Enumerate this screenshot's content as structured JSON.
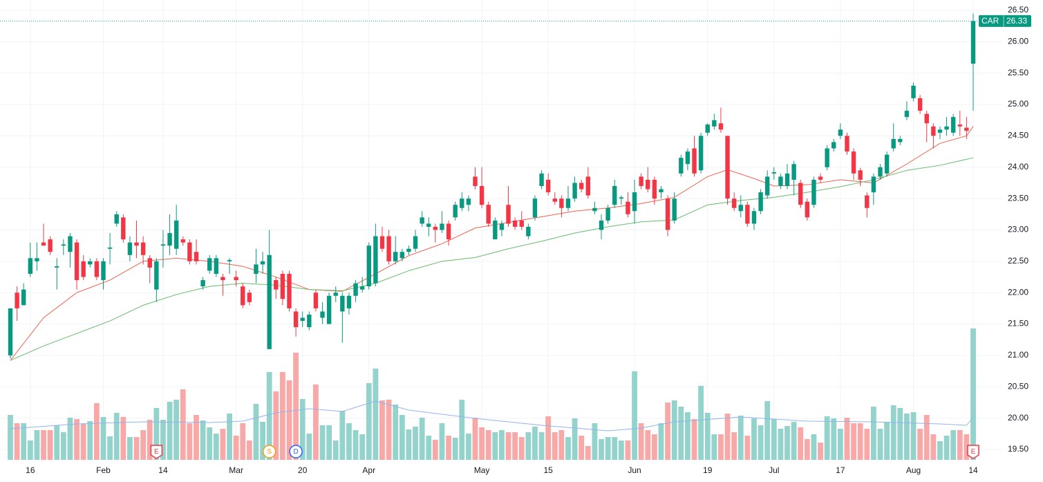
{
  "chart_data": {
    "type": "candlestick",
    "symbol": "CAR",
    "up_color": "#089981",
    "down_color": "#f23645",
    "volume_up_color": "#93d3cc",
    "volume_down_color": "#f7a8a7",
    "grid": true,
    "ylim": [
      19.5,
      26.5
    ],
    "yticks": [
      {
        "value": 19.5,
        "label": "19.50"
      },
      {
        "value": 20,
        "label": "20.00"
      },
      {
        "value": 20.5,
        "label": "20.50"
      },
      {
        "value": 21,
        "label": "21.00"
      },
      {
        "value": 21.5,
        "label": "21.50"
      },
      {
        "value": 22,
        "label": "22.00"
      },
      {
        "value": 22.5,
        "label": "22.50"
      },
      {
        "value": 23,
        "label": "23.00"
      },
      {
        "value": 23.5,
        "label": "23.50"
      },
      {
        "value": 24,
        "label": "24.00"
      },
      {
        "value": 24.5,
        "label": "24.50"
      },
      {
        "value": 25,
        "label": "25.00"
      },
      {
        "value": 25.5,
        "label": "25.50"
      },
      {
        "value": 26,
        "label": "26.00"
      },
      {
        "value": 26.5,
        "label": "26.50"
      }
    ],
    "vlim": [
      0,
      200
    ],
    "categories": [
      null,
      null,
      null,
      "16",
      null,
      null,
      null,
      null,
      null,
      null,
      null,
      null,
      null,
      null,
      "Feb",
      null,
      null,
      null,
      null,
      null,
      null,
      null,
      null,
      "14",
      null,
      null,
      null,
      null,
      null,
      null,
      null,
      null,
      null,
      null,
      "Mar",
      null,
      null,
      null,
      null,
      null,
      null,
      null,
      null,
      null,
      "20",
      null,
      null,
      null,
      null,
      null,
      null,
      null,
      null,
      null,
      "Apr",
      null,
      null,
      null,
      null,
      null,
      null,
      null,
      null,
      null,
      null,
      null,
      null,
      null,
      null,
      null,
      null,
      "May",
      null,
      null,
      null,
      null,
      null,
      null,
      null,
      null,
      null,
      "15",
      null,
      null,
      null,
      null,
      null,
      null,
      null,
      null,
      null,
      null,
      null,
      null,
      "Jun",
      null,
      null,
      null,
      null,
      null,
      null,
      null,
      null,
      null,
      null,
      "19",
      null,
      null,
      null,
      null,
      null,
      null,
      null,
      null,
      null,
      "Jul",
      null,
      null,
      null,
      null,
      null,
      null,
      null,
      null,
      null,
      "17",
      null,
      null,
      null,
      null,
      null,
      null,
      null,
      null,
      null,
      null,
      "Aug",
      null,
      null,
      null,
      null,
      null,
      null,
      null,
      null,
      "14"
    ],
    "open": [
      21.0,
      22.0,
      21.8,
      22.3,
      22.5,
      22.8,
      22.85,
      22.4,
      22.75,
      22.65,
      22.8,
      22.5,
      22.45,
      22.5,
      22.2,
      22.7,
      23.1,
      23.2,
      22.6,
      22.8,
      22.8,
      22.55,
      22.05,
      22.75,
      22.75,
      22.7,
      22.85,
      22.8,
      22.65,
      22.1,
      22.35,
      22.3,
      22.25,
      22.5,
      22.25,
      22.1,
      22.0,
      22.3,
      22.45,
      21.1,
      22.2,
      22.3,
      22.3,
      21.7,
      21.55,
      21.45,
      22.0,
      21.6,
      21.5,
      21.95,
      21.7,
      21.75,
      21.95,
      22.05,
      22.1,
      22.15,
      22.9,
      22.9,
      22.5,
      22.55,
      22.65,
      22.7,
      23.1,
      23.05,
      23.05,
      23.0,
      23.1,
      23.2,
      23.35,
      23.4,
      23.85,
      23.7,
      23.4,
      22.85,
      23.0,
      23.4,
      23.15,
      23.15,
      22.9,
      23.2,
      23.7,
      23.8,
      23.5,
      23.5,
      23.35,
      23.5,
      23.75,
      23.85,
      23.3,
      23.0,
      23.15,
      23.4,
      23.5,
      23.45,
      23.3,
      23.85,
      23.8,
      23.8,
      23.6,
      23.5,
      23.15,
      23.9,
      24.05,
      24.3,
      23.95,
      24.55,
      24.65,
      24.7,
      24.5,
      23.5,
      23.3,
      23.4,
      23.1,
      23.3,
      23.55,
      23.9,
      23.7,
      23.7,
      23.8,
      23.75,
      23.45,
      23.4,
      23.85,
      24.0,
      24.3,
      24.5,
      24.5,
      24.25,
      23.95,
      23.55,
      23.6,
      23.85,
      23.9,
      24.3,
      24.4,
      24.8,
      25.1,
      25.1,
      24.85,
      24.65,
      24.55,
      24.6,
      24.55,
      24.68,
      24.63,
      25.65
    ],
    "high": [
      21.75,
      22.1,
      22.15,
      22.8,
      22.8,
      23.1,
      22.9,
      22.55,
      22.85,
      22.95,
      22.85,
      22.6,
      22.55,
      22.55,
      22.55,
      22.95,
      23.3,
      23.25,
      22.9,
      23.15,
      22.9,
      22.6,
      22.55,
      23.0,
      23.25,
      23.4,
      22.9,
      22.85,
      22.85,
      22.25,
      22.6,
      22.6,
      22.3,
      22.55,
      22.35,
      22.15,
      22.05,
      22.7,
      22.65,
      23.0,
      22.25,
      22.35,
      22.35,
      21.75,
      21.7,
      21.7,
      22.05,
      21.85,
      22.0,
      22.1,
      22.0,
      22.0,
      22.2,
      22.25,
      22.8,
      23.1,
      23.05,
      23.0,
      22.9,
      22.7,
      22.75,
      23.0,
      23.3,
      23.2,
      23.1,
      23.3,
      23.15,
      23.45,
      23.6,
      23.55,
      24.0,
      24.0,
      23.45,
      23.2,
      23.15,
      23.7,
      23.2,
      23.3,
      23.1,
      23.55,
      23.95,
      23.9,
      23.6,
      23.55,
      23.7,
      23.85,
      23.8,
      24.0,
      23.45,
      23.25,
      23.4,
      23.8,
      23.55,
      23.6,
      23.8,
      23.9,
      24.0,
      23.85,
      23.7,
      23.55,
      23.6,
      24.2,
      24.3,
      24.5,
      24.55,
      24.7,
      24.85,
      24.95,
      24.5,
      23.6,
      23.55,
      23.45,
      23.35,
      23.65,
      23.95,
      24.0,
      23.9,
      24.05,
      24.1,
      23.8,
      23.5,
      23.85,
      23.9,
      24.35,
      24.45,
      24.7,
      24.55,
      24.3,
      23.99,
      23.6,
      23.9,
      24.05,
      24.25,
      24.7,
      24.5,
      25.05,
      25.35,
      25.15,
      24.9,
      24.7,
      24.65,
      24.8,
      24.85,
      24.9,
      24.8,
      26.45
    ],
    "low": [
      20.95,
      21.55,
      21.8,
      22.25,
      22.35,
      22.75,
      22.6,
      22.05,
      22.6,
      22.4,
      22.05,
      22.2,
      22.4,
      22.2,
      22.05,
      22.45,
      23.05,
      22.8,
      22.5,
      22.55,
      22.45,
      22.15,
      21.85,
      22.4,
      22.6,
      22.6,
      22.75,
      22.45,
      22.45,
      22.05,
      22.3,
      22.25,
      21.95,
      22.3,
      22.1,
      21.75,
      21.8,
      22.15,
      22.3,
      21.1,
      21.9,
      21.8,
      21.7,
      21.3,
      21.45,
      21.4,
      21.7,
      21.5,
      21.5,
      21.85,
      21.2,
      21.65,
      21.85,
      22.0,
      22.05,
      22.1,
      22.65,
      22.45,
      22.45,
      22.5,
      22.6,
      22.65,
      23.05,
      22.9,
      22.8,
      22.95,
      22.75,
      23.15,
      23.3,
      23.3,
      23.65,
      23.35,
      23.05,
      22.85,
      22.9,
      23.05,
      23.0,
      23.0,
      22.85,
      23.15,
      23.65,
      23.55,
      23.4,
      23.2,
      23.3,
      23.45,
      23.6,
      23.5,
      23.25,
      22.85,
      23.1,
      23.35,
      23.4,
      23.2,
      23.1,
      23.65,
      23.6,
      23.4,
      23.5,
      22.9,
      23.1,
      23.85,
      23.95,
      23.85,
      23.9,
      24.5,
      24.6,
      24.55,
      23.4,
      23.3,
      23.2,
      23.05,
      23.0,
      23.25,
      23.5,
      23.8,
      23.65,
      23.65,
      23.55,
      23.35,
      23.15,
      23.35,
      23.75,
      23.95,
      24.25,
      24.45,
      24.2,
      23.8,
      23.7,
      23.2,
      23.4,
      23.8,
      23.85,
      24.25,
      24.35,
      24.75,
      25.05,
      24.85,
      24.4,
      24.3,
      24.45,
      24.5,
      24.5,
      24.5,
      24.45,
      24.9
    ],
    "close": [
      21.75,
      21.75,
      22.05,
      22.55,
      22.55,
      22.75,
      22.65,
      22.42,
      22.77,
      22.9,
      22.2,
      22.25,
      22.5,
      22.25,
      22.5,
      22.72,
      23.25,
      22.85,
      22.8,
      22.75,
      22.6,
      22.4,
      22.5,
      22.77,
      22.95,
      23.15,
      22.8,
      22.5,
      22.5,
      22.2,
      22.55,
      22.55,
      22.2,
      22.52,
      22.2,
      21.8,
      21.85,
      22.45,
      22.5,
      22.6,
      22.05,
      21.9,
      21.75,
      21.45,
      21.6,
      21.65,
      21.75,
      21.7,
      21.95,
      22.0,
      21.95,
      21.95,
      22.15,
      22.1,
      22.75,
      22.9,
      22.7,
      22.5,
      22.65,
      22.65,
      22.7,
      22.9,
      23.2,
      23.1,
      23.0,
      23.1,
      22.85,
      23.4,
      23.5,
      23.5,
      23.7,
      23.4,
      23.1,
      23.15,
      23.1,
      23.1,
      23.05,
      23.05,
      23.05,
      23.5,
      23.9,
      23.6,
      23.45,
      23.35,
      23.5,
      23.75,
      23.65,
      23.55,
      23.35,
      23.15,
      23.35,
      23.7,
      23.52,
      23.25,
      23.6,
      23.7,
      23.65,
      23.5,
      23.65,
      23.0,
      23.5,
      24.15,
      24.25,
      23.9,
      24.5,
      24.68,
      24.75,
      24.6,
      23.5,
      23.35,
      23.4,
      23.1,
      23.3,
      23.6,
      23.85,
      23.92,
      23.85,
      23.9,
      24.05,
      23.4,
      23.2,
      23.8,
      23.8,
      24.3,
      24.4,
      24.6,
      24.25,
      23.9,
      23.8,
      23.35,
      23.85,
      24.0,
      24.2,
      24.45,
      24.45,
      24.9,
      25.3,
      24.9,
      24.7,
      24.5,
      24.6,
      24.65,
      24.8,
      24.65,
      24.58,
      26.33
    ],
    "volume": [
      65,
      53,
      53,
      28,
      43,
      43,
      43,
      50,
      40,
      61,
      59,
      52,
      56,
      82,
      62,
      34,
      68,
      62,
      33,
      33,
      43,
      58,
      75,
      58,
      84,
      87,
      102,
      53,
      65,
      57,
      47,
      38,
      45,
      67,
      35,
      53,
      28,
      81,
      55,
      127,
      99,
      127,
      115,
      155,
      88,
      38,
      109,
      50,
      50,
      28,
      71,
      53,
      43,
      37,
      111,
      132,
      86,
      87,
      80,
      65,
      44,
      48,
      61,
      35,
      29,
      53,
      35,
      32,
      87,
      38,
      61,
      47,
      43,
      40,
      43,
      40,
      40,
      33,
      40,
      48,
      40,
      63,
      40,
      43,
      33,
      60,
      35,
      20,
      53,
      30,
      33,
      33,
      28,
      28,
      128,
      53,
      43,
      37,
      53,
      83,
      86,
      77,
      69,
      59,
      107,
      68,
      37,
      37,
      67,
      40,
      64,
      35,
      60,
      50,
      85,
      59,
      45,
      49,
      55,
      47,
      30,
      37,
      25,
      63,
      60,
      45,
      61,
      53,
      53,
      45,
      77,
      45,
      55,
      79,
      75,
      67,
      69,
      45,
      65,
      37,
      27,
      35,
      43,
      43,
      37,
      190
    ],
    "moving_averages": [
      {
        "color": "#f0614f",
        "x": [
          0,
          5,
          10,
          15,
          20,
          25,
          30,
          35,
          40,
          45,
          50,
          55,
          60,
          65,
          70,
          75,
          80,
          85,
          90,
          95,
          100,
          105,
          108,
          112,
          115,
          120,
          125,
          130,
          135,
          140,
          144,
          145
        ],
        "values": [
          20.92,
          21.6,
          22.0,
          22.2,
          22.5,
          22.55,
          22.5,
          22.42,
          22.25,
          22.05,
          22.02,
          22.3,
          22.59,
          22.78,
          23.03,
          23.12,
          23.21,
          23.3,
          23.35,
          23.42,
          23.52,
          23.85,
          23.96,
          23.82,
          23.7,
          23.72,
          23.8,
          23.75,
          24.05,
          24.38,
          24.5,
          24.65
        ]
      },
      {
        "color": "#66bb6a",
        "x": [
          0,
          5,
          10,
          15,
          20,
          25,
          30,
          35,
          40,
          45,
          50,
          55,
          60,
          65,
          70,
          75,
          80,
          85,
          90,
          95,
          100,
          105,
          110,
          115,
          120,
          125,
          130,
          135,
          140,
          145
        ],
        "values": [
          20.92,
          21.15,
          21.35,
          21.55,
          21.8,
          21.97,
          22.1,
          22.15,
          22.12,
          22.05,
          22.03,
          22.15,
          22.35,
          22.5,
          22.56,
          22.7,
          22.82,
          22.95,
          23.05,
          23.13,
          23.16,
          23.4,
          23.47,
          23.52,
          23.6,
          23.69,
          23.8,
          23.95,
          24.03,
          24.15
        ]
      }
    ],
    "volume_average": {
      "color": "#91b4ec",
      "x": [
        0,
        10,
        20,
        30,
        35,
        40,
        45,
        50,
        55,
        60,
        70,
        80,
        90,
        95,
        100,
        110,
        120,
        130,
        140,
        144,
        145
      ],
      "values": [
        45,
        52,
        55,
        54,
        56,
        68,
        74,
        70,
        85,
        72,
        60,
        50,
        42,
        46,
        55,
        62,
        56,
        55,
        52,
        50,
        62
      ]
    },
    "events": [
      {
        "label": "E",
        "x": 22,
        "color": "#f23645"
      },
      {
        "label": "S",
        "x": 39,
        "color": "#f39c12"
      },
      {
        "label": "D",
        "x": 43,
        "color": "#2962ff"
      },
      {
        "label": "E",
        "x": 145,
        "color": "#f23645"
      }
    ]
  }
}
